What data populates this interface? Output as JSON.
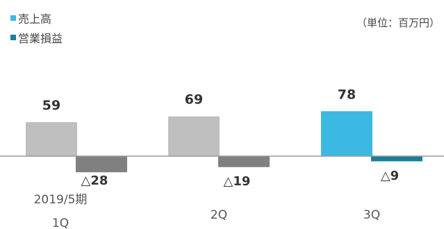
{
  "chart_data": {
    "type": "bar",
    "categories": [
      "2019/5期\n1Q",
      "2Q",
      "3Q"
    ],
    "series": [
      {
        "name": "売上高",
        "values": [
          59,
          69,
          78
        ]
      },
      {
        "name": "営業損益",
        "values": [
          -28,
          -19,
          -9
        ]
      }
    ],
    "value_labels": {
      "sales": [
        "59",
        "69",
        "78"
      ],
      "operating_income": [
        "△28",
        "△19",
        "△9"
      ]
    },
    "unit": "（単位：百万円）",
    "legend_position": "top-left",
    "grid": false,
    "colors": {
      "sales": "#bfbfbf",
      "sales_highlight": "#3cb9e2",
      "operating_income": "#808080",
      "operating_income_highlight": "#1a7f9c",
      "baseline": "#999999"
    }
  }
}
